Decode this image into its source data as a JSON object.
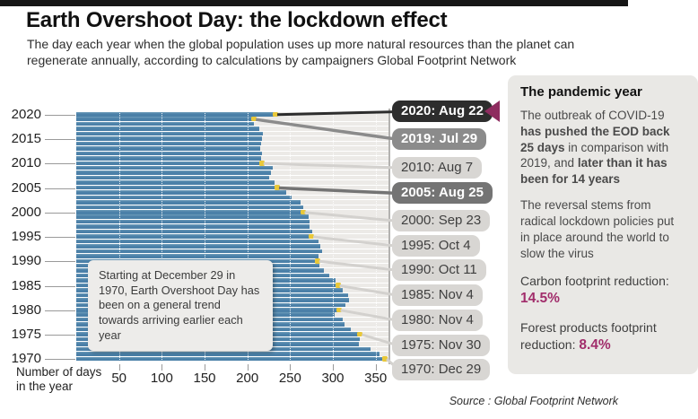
{
  "header": {
    "title": "Earth Overshoot Day: the lockdown effect",
    "subtitle": "The day each year when the global population uses up more natural resources than the planet can regenerate annually, according to calculations by campaigners Global Footprint Network"
  },
  "axis": {
    "x_label_line1": "Number of days",
    "x_label_line2": "in the year"
  },
  "annotation": {
    "text": "Starting at December 29 in 1970, Earth Overshoot Day has been on a general trend towards arriving earlier each year"
  },
  "chart_data": {
    "type": "bar",
    "orientation": "horizontal",
    "title": "Earth Overshoot Day: the lockdown effect",
    "xlabel": "Number of days in the year",
    "xlim": [
      0,
      365
    ],
    "x_ticks": [
      50,
      100,
      150,
      200,
      250,
      300,
      350
    ],
    "y_tick_labels": [
      "2020",
      "2015",
      "2010",
      "2005",
      "2000",
      "1995",
      "1990",
      "1985",
      "1980",
      "1975",
      "1970"
    ],
    "grid": "vertical-white-dotted",
    "years": [
      2020,
      2019,
      2018,
      2017,
      2016,
      2015,
      2014,
      2013,
      2012,
      2011,
      2010,
      2009,
      2008,
      2007,
      2006,
      2005,
      2004,
      2003,
      2002,
      2001,
      2000,
      1999,
      1998,
      1997,
      1996,
      1995,
      1994,
      1993,
      1992,
      1991,
      1990,
      1989,
      1988,
      1987,
      1986,
      1985,
      1984,
      1983,
      1982,
      1981,
      1980,
      1979,
      1978,
      1977,
      1976,
      1975,
      1974,
      1973,
      1972,
      1971,
      1970
    ],
    "values": [
      235,
      210,
      208,
      214,
      218,
      217,
      216,
      215,
      217,
      216,
      219,
      230,
      228,
      226,
      232,
      237,
      245,
      252,
      262,
      265,
      267,
      272,
      273,
      273,
      276,
      277,
      283,
      285,
      287,
      283,
      284,
      284,
      289,
      296,
      303,
      308,
      311,
      318,
      319,
      315,
      309,
      302,
      311,
      314,
      321,
      334,
      331,
      330,
      344,
      354,
      363
    ],
    "callouts": [
      {
        "year": 2020,
        "label": "2020: Aug 22",
        "style": "dark"
      },
      {
        "year": 2019,
        "label": "2019: Jul 29",
        "style": "mid"
      },
      {
        "year": 2010,
        "label": "2010: Aug 7",
        "style": "light"
      },
      {
        "year": 2005,
        "label": "2005: Aug 25",
        "style": "middark"
      },
      {
        "year": 2000,
        "label": "2000: Sep 23",
        "style": "light"
      },
      {
        "year": 1995,
        "label": "1995: Oct 4",
        "style": "light"
      },
      {
        "year": 1990,
        "label": "1990: Oct 11",
        "style": "light"
      },
      {
        "year": 1985,
        "label": "1985: Nov 4",
        "style": "light"
      },
      {
        "year": 1980,
        "label": "1980: Nov 4",
        "style": "light"
      },
      {
        "year": 1975,
        "label": "1975: Nov 30",
        "style": "light"
      },
      {
        "year": 1970,
        "label": "1970: Dec 29",
        "style": "light"
      }
    ]
  },
  "panel": {
    "title": "The pandemic year",
    "p1_runs": [
      {
        "t": "The outbreak of COVID-19 ",
        "b": false
      },
      {
        "t": "has pushed the EOD back 25 days",
        "b": true
      },
      {
        "t": " in comparison with 2019, and ",
        "b": false
      },
      {
        "t": "later than it has been for 14 years",
        "b": true
      }
    ],
    "p2": "The reversal stems from radical lockdown policies put in place around the world to slow the virus",
    "stats": [
      {
        "label": "Carbon footprint reduction: ",
        "value": "14.5%"
      },
      {
        "label": "Forest products footprint reduction: ",
        "value": "8.4%"
      }
    ]
  },
  "source": "Source : Global Footprint Network",
  "colors": {
    "bar": "#4b80a8",
    "bar_highlight": "#6d9cba",
    "tip_yellow": "#e9c839",
    "track": "#eceae7",
    "badge_dark": "#2d2d2d",
    "badge_mid": "#8b8b8b",
    "badge_middark": "#747474",
    "badge_light": "#d8d6d3",
    "badge_light_text": "#3f3f3f",
    "leader_light": "#d3d1ce",
    "stat_magenta": "#a12d6b",
    "arrow_magenta": "#8e2c5f"
  }
}
